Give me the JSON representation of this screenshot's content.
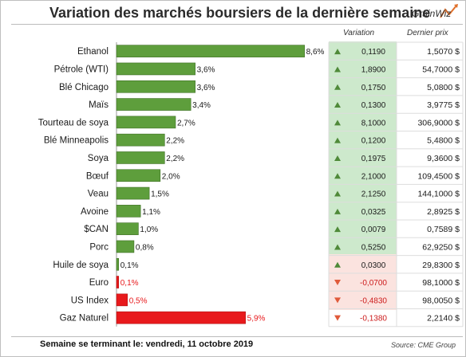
{
  "title": "Variation des marchés boursiers de la dernière semaine",
  "logo": {
    "text": "GrainWiz"
  },
  "columns": {
    "variation": "Variation",
    "last_price": "Dernier prix"
  },
  "footer": {
    "left": "Semaine se terminant le: vendredi, 11 octobre 2019",
    "source": "Source: CME Group"
  },
  "colors": {
    "positive": "#5e9e3c",
    "negative": "#e8191c",
    "pos_bg": "#cde9cc",
    "neg_bg": "#fbe3df"
  },
  "chart_data": {
    "type": "bar",
    "orientation": "horizontal",
    "categories": [
      "Ethanol",
      "Pétrole (WTI)",
      "Blé Chicago",
      "Maïs",
      "Tourteau de soya",
      "Blé Minneapolis",
      "Soya",
      "Bœuf",
      "Veau",
      "Avoine",
      "$CAN",
      "Porc",
      "Huile de soya",
      "Euro",
      "US Index",
      "Gaz Naturel"
    ],
    "values": [
      8.6,
      3.6,
      3.6,
      3.4,
      2.7,
      2.2,
      2.2,
      2.0,
      1.5,
      1.1,
      1.0,
      0.8,
      0.1,
      -0.1,
      -0.5,
      -5.9
    ],
    "value_labels": [
      "8,6%",
      "3,6%",
      "3,6%",
      "3,4%",
      "2,7%",
      "2,2%",
      "2,2%",
      "2,0%",
      "1,5%",
      "1,1%",
      "1,0%",
      "0,8%",
      "0,1%",
      "0,1%",
      "0,5%",
      "5,9%"
    ],
    "table": {
      "variation": [
        "0,1190",
        "1,8900",
        "0,1750",
        "0,1300",
        "8,1000",
        "0,1200",
        "0,1975",
        "2,1000",
        "2,1250",
        "0,0325",
        "0,0079",
        "0,5250",
        "0,0300",
        "-0,0700",
        "-0,4830",
        "-0,1380"
      ],
      "last_price": [
        "1,5070 $",
        "54,7000 $",
        "5,0800 $",
        "3,9775 $",
        "306,9000 $",
        "5,4800 $",
        "9,3600 $",
        "109,4500 $",
        "144,1000 $",
        "2,8925 $",
        "0,7589 $",
        "62,9250 $",
        "29,8300 $",
        "98,1000 $",
        "98,0050 $",
        "2,2140 $"
      ],
      "direction": [
        "up",
        "up",
        "up",
        "up",
        "up",
        "up",
        "up",
        "up",
        "up",
        "up",
        "up",
        "up",
        "up",
        "down",
        "down",
        "down"
      ]
    },
    "grid": false,
    "legend": "none"
  }
}
